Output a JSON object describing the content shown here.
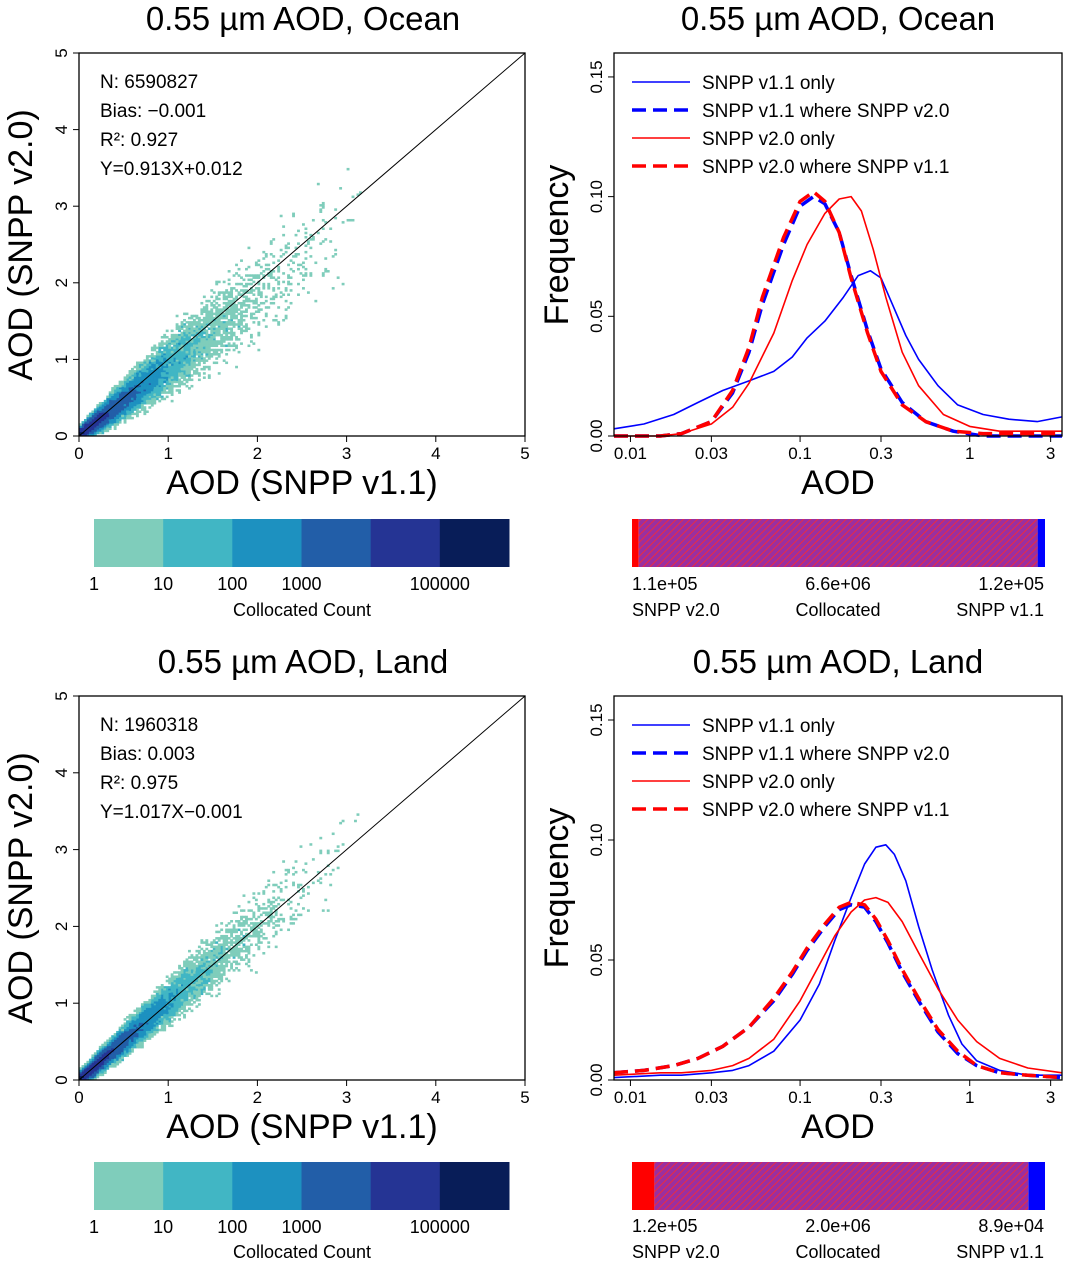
{
  "colors": {
    "v11": "#0000ff",
    "v20": "#ff0000",
    "collocated_fill": "#9a2fa0",
    "scatter_levels": [
      "#7fcdbb",
      "#41b6c4",
      "#1d91c0",
      "#225ea8",
      "#253494",
      "#081d58"
    ]
  },
  "legend_labels": {
    "v11_only": "SNPP v1.1 only",
    "v11_where": "SNPP v1.1 where SNPP v2.0",
    "v20_only": "SNPP v2.0 only",
    "v20_where": "SNPP v2.0 where SNPP v1.1"
  },
  "chart_data": [
    {
      "id": "ocean_scatter",
      "type": "heatmap",
      "title": "0.55 µm AOD, Ocean",
      "xlabel": "AOD (SNPP v1.1)",
      "ylabel": "AOD (SNPP v2.0)",
      "xlim": [
        0,
        5
      ],
      "ylim": [
        0,
        5
      ],
      "xticks": [
        "0",
        "1",
        "2",
        "3",
        "4",
        "5"
      ],
      "yticks": [
        "0",
        "1",
        "2",
        "3",
        "4",
        "5"
      ],
      "stats": {
        "n": "N: 6590827",
        "bias": "Bias: −0.001",
        "r2": "R²: 0.927",
        "fit": "Y=0.913X+0.012"
      },
      "fit": {
        "slope": 0.913,
        "intercept": 0.012,
        "spread": 0.22
      },
      "colorbar": {
        "label": "Collocated Count",
        "ticks": [
          "1",
          "10",
          "100",
          "1000",
          "100000"
        ]
      }
    },
    {
      "id": "ocean_hist",
      "type": "line",
      "title": "0.55 µm AOD, Ocean",
      "xlabel": "AOD",
      "ylabel": "Frequency",
      "x_scale": "log",
      "xlim": [
        0.008,
        3.5
      ],
      "ylim": [
        0,
        0.16
      ],
      "xticks": [
        "0.01",
        "0.03",
        "0.1",
        "0.3",
        "1",
        "3"
      ],
      "yticks": [
        "0.00",
        "0.05",
        "0.10",
        "0.15"
      ],
      "series": [
        {
          "name": "SNPP v1.1 only",
          "style": "solid",
          "color": "#0000ff",
          "x": [
            0.008,
            0.012,
            0.018,
            0.025,
            0.035,
            0.05,
            0.07,
            0.09,
            0.11,
            0.14,
            0.18,
            0.22,
            0.26,
            0.3,
            0.35,
            0.42,
            0.5,
            0.65,
            0.85,
            1.2,
            1.7,
            2.5,
            3.5
          ],
          "y": [
            0.003,
            0.005,
            0.009,
            0.014,
            0.019,
            0.023,
            0.027,
            0.033,
            0.041,
            0.048,
            0.058,
            0.067,
            0.069,
            0.066,
            0.055,
            0.042,
            0.032,
            0.021,
            0.013,
            0.009,
            0.007,
            0.006,
            0.008
          ]
        },
        {
          "name": "SNPP v1.1 where SNPP v2.0",
          "style": "dashed",
          "color": "#0000ff",
          "x": [
            0.008,
            0.015,
            0.02,
            0.03,
            0.04,
            0.05,
            0.06,
            0.08,
            0.1,
            0.12,
            0.14,
            0.17,
            0.2,
            0.25,
            0.3,
            0.4,
            0.55,
            0.8,
            1.2,
            2,
            3.5
          ],
          "y": [
            0.0,
            0.0,
            0.001,
            0.006,
            0.018,
            0.035,
            0.055,
            0.08,
            0.096,
            0.1,
            0.097,
            0.085,
            0.067,
            0.044,
            0.028,
            0.014,
            0.006,
            0.002,
            0.0,
            0.0,
            0.0
          ]
        },
        {
          "name": "SNPP v2.0 only",
          "style": "solid",
          "color": "#ff0000",
          "x": [
            0.008,
            0.015,
            0.02,
            0.03,
            0.04,
            0.05,
            0.07,
            0.09,
            0.11,
            0.14,
            0.17,
            0.2,
            0.23,
            0.27,
            0.32,
            0.4,
            0.5,
            0.7,
            1,
            1.5,
            2.2,
            3.5
          ],
          "y": [
            0.0,
            0.0,
            0.001,
            0.005,
            0.012,
            0.022,
            0.043,
            0.065,
            0.08,
            0.093,
            0.099,
            0.1,
            0.094,
            0.078,
            0.058,
            0.035,
            0.021,
            0.009,
            0.004,
            0.002,
            0.002,
            0.002
          ]
        },
        {
          "name": "SNPP v2.0 where SNPP v1.1",
          "style": "dashed",
          "color": "#ff0000",
          "x": [
            0.008,
            0.015,
            0.02,
            0.03,
            0.04,
            0.05,
            0.06,
            0.08,
            0.1,
            0.12,
            0.14,
            0.17,
            0.2,
            0.25,
            0.3,
            0.4,
            0.55,
            0.8,
            1.2,
            2,
            3.5
          ],
          "y": [
            0.0,
            0.0,
            0.001,
            0.006,
            0.019,
            0.037,
            0.058,
            0.083,
            0.098,
            0.102,
            0.098,
            0.085,
            0.066,
            0.043,
            0.027,
            0.013,
            0.006,
            0.002,
            0.001,
            0.001,
            0.001
          ]
        }
      ],
      "bar": {
        "left_value": "1.1e+05",
        "center_value": "6.6e+06",
        "right_value": "1.2e+05",
        "left_label": "SNPP v2.0",
        "center_label": "Collocated",
        "right_label": "SNPP v1.1",
        "left_count": 110000,
        "center_count": 6600000,
        "right_count": 120000
      }
    },
    {
      "id": "land_scatter",
      "type": "heatmap",
      "title": "0.55 µm AOD, Land",
      "xlabel": "AOD (SNPP v1.1)",
      "ylabel": "AOD (SNPP v2.0)",
      "xlim": [
        0,
        5
      ],
      "ylim": [
        0,
        5
      ],
      "xticks": [
        "0",
        "1",
        "2",
        "3",
        "4",
        "5"
      ],
      "yticks": [
        "0",
        "1",
        "2",
        "3",
        "4",
        "5"
      ],
      "stats": {
        "n": "N: 1960318",
        "bias": "Bias: 0.003",
        "r2": "R²: 0.975",
        "fit": "Y=1.017X−0.001"
      },
      "fit": {
        "slope": 1.017,
        "intercept": -0.001,
        "spread": 0.15
      },
      "colorbar": {
        "label": "Collocated Count",
        "ticks": [
          "1",
          "10",
          "100",
          "1000",
          "100000"
        ]
      }
    },
    {
      "id": "land_hist",
      "type": "line",
      "title": "0.55 µm AOD, Land",
      "xlabel": "AOD",
      "ylabel": "Frequency",
      "x_scale": "log",
      "xlim": [
        0.008,
        3.5
      ],
      "ylim": [
        0,
        0.16
      ],
      "xticks": [
        "0.01",
        "0.03",
        "0.1",
        "0.3",
        "1",
        "3"
      ],
      "yticks": [
        "0.00",
        "0.05",
        "0.10",
        "0.15"
      ],
      "series": [
        {
          "name": "SNPP v1.1 only",
          "style": "solid",
          "color": "#0000ff",
          "x": [
            0.008,
            0.015,
            0.02,
            0.03,
            0.04,
            0.05,
            0.07,
            0.1,
            0.13,
            0.16,
            0.2,
            0.24,
            0.28,
            0.32,
            0.36,
            0.42,
            0.5,
            0.6,
            0.75,
            0.9,
            1.1,
            1.5,
            2.2,
            3.5
          ],
          "y": [
            0.001,
            0.002,
            0.002,
            0.003,
            0.004,
            0.006,
            0.012,
            0.025,
            0.04,
            0.058,
            0.076,
            0.09,
            0.097,
            0.098,
            0.094,
            0.083,
            0.064,
            0.046,
            0.027,
            0.015,
            0.008,
            0.004,
            0.002,
            0.002
          ]
        },
        {
          "name": "SNPP v1.1 where SNPP v2.0",
          "style": "dashed",
          "color": "#0000ff",
          "x": [
            0.008,
            0.012,
            0.018,
            0.025,
            0.035,
            0.05,
            0.07,
            0.09,
            0.11,
            0.14,
            0.17,
            0.2,
            0.24,
            0.28,
            0.33,
            0.4,
            0.5,
            0.65,
            0.85,
            1.1,
            1.5,
            2.2,
            3.5
          ],
          "y": [
            0.003,
            0.004,
            0.006,
            0.009,
            0.014,
            0.022,
            0.033,
            0.044,
            0.054,
            0.064,
            0.071,
            0.073,
            0.072,
            0.066,
            0.057,
            0.045,
            0.033,
            0.02,
            0.011,
            0.006,
            0.003,
            0.002,
            0.001
          ]
        },
        {
          "name": "SNPP v2.0 only",
          "style": "solid",
          "color": "#ff0000",
          "x": [
            0.008,
            0.015,
            0.02,
            0.03,
            0.04,
            0.05,
            0.07,
            0.1,
            0.13,
            0.16,
            0.2,
            0.24,
            0.28,
            0.33,
            0.4,
            0.5,
            0.65,
            0.85,
            1.1,
            1.5,
            2.2,
            3.5
          ],
          "y": [
            0.002,
            0.003,
            0.003,
            0.004,
            0.006,
            0.009,
            0.017,
            0.033,
            0.048,
            0.06,
            0.07,
            0.075,
            0.076,
            0.074,
            0.066,
            0.053,
            0.038,
            0.025,
            0.016,
            0.009,
            0.005,
            0.003
          ]
        },
        {
          "name": "SNPP v2.0 where SNPP v1.1",
          "style": "dashed",
          "color": "#ff0000",
          "x": [
            0.008,
            0.012,
            0.018,
            0.025,
            0.035,
            0.05,
            0.07,
            0.09,
            0.11,
            0.14,
            0.17,
            0.2,
            0.24,
            0.28,
            0.33,
            0.4,
            0.5,
            0.65,
            0.85,
            1.1,
            1.5,
            2.2,
            3.5
          ],
          "y": [
            0.003,
            0.004,
            0.006,
            0.009,
            0.014,
            0.022,
            0.034,
            0.045,
            0.055,
            0.065,
            0.072,
            0.074,
            0.073,
            0.067,
            0.058,
            0.046,
            0.034,
            0.021,
            0.012,
            0.006,
            0.003,
            0.002,
            0.001
          ]
        }
      ],
      "bar": {
        "left_value": "1.2e+05",
        "center_value": "2.0e+06",
        "right_value": "8.9e+04",
        "left_label": "SNPP v2.0",
        "center_label": "Collocated",
        "right_label": "SNPP v1.1",
        "left_count": 120000,
        "center_count": 2000000,
        "right_count": 89000
      }
    }
  ]
}
